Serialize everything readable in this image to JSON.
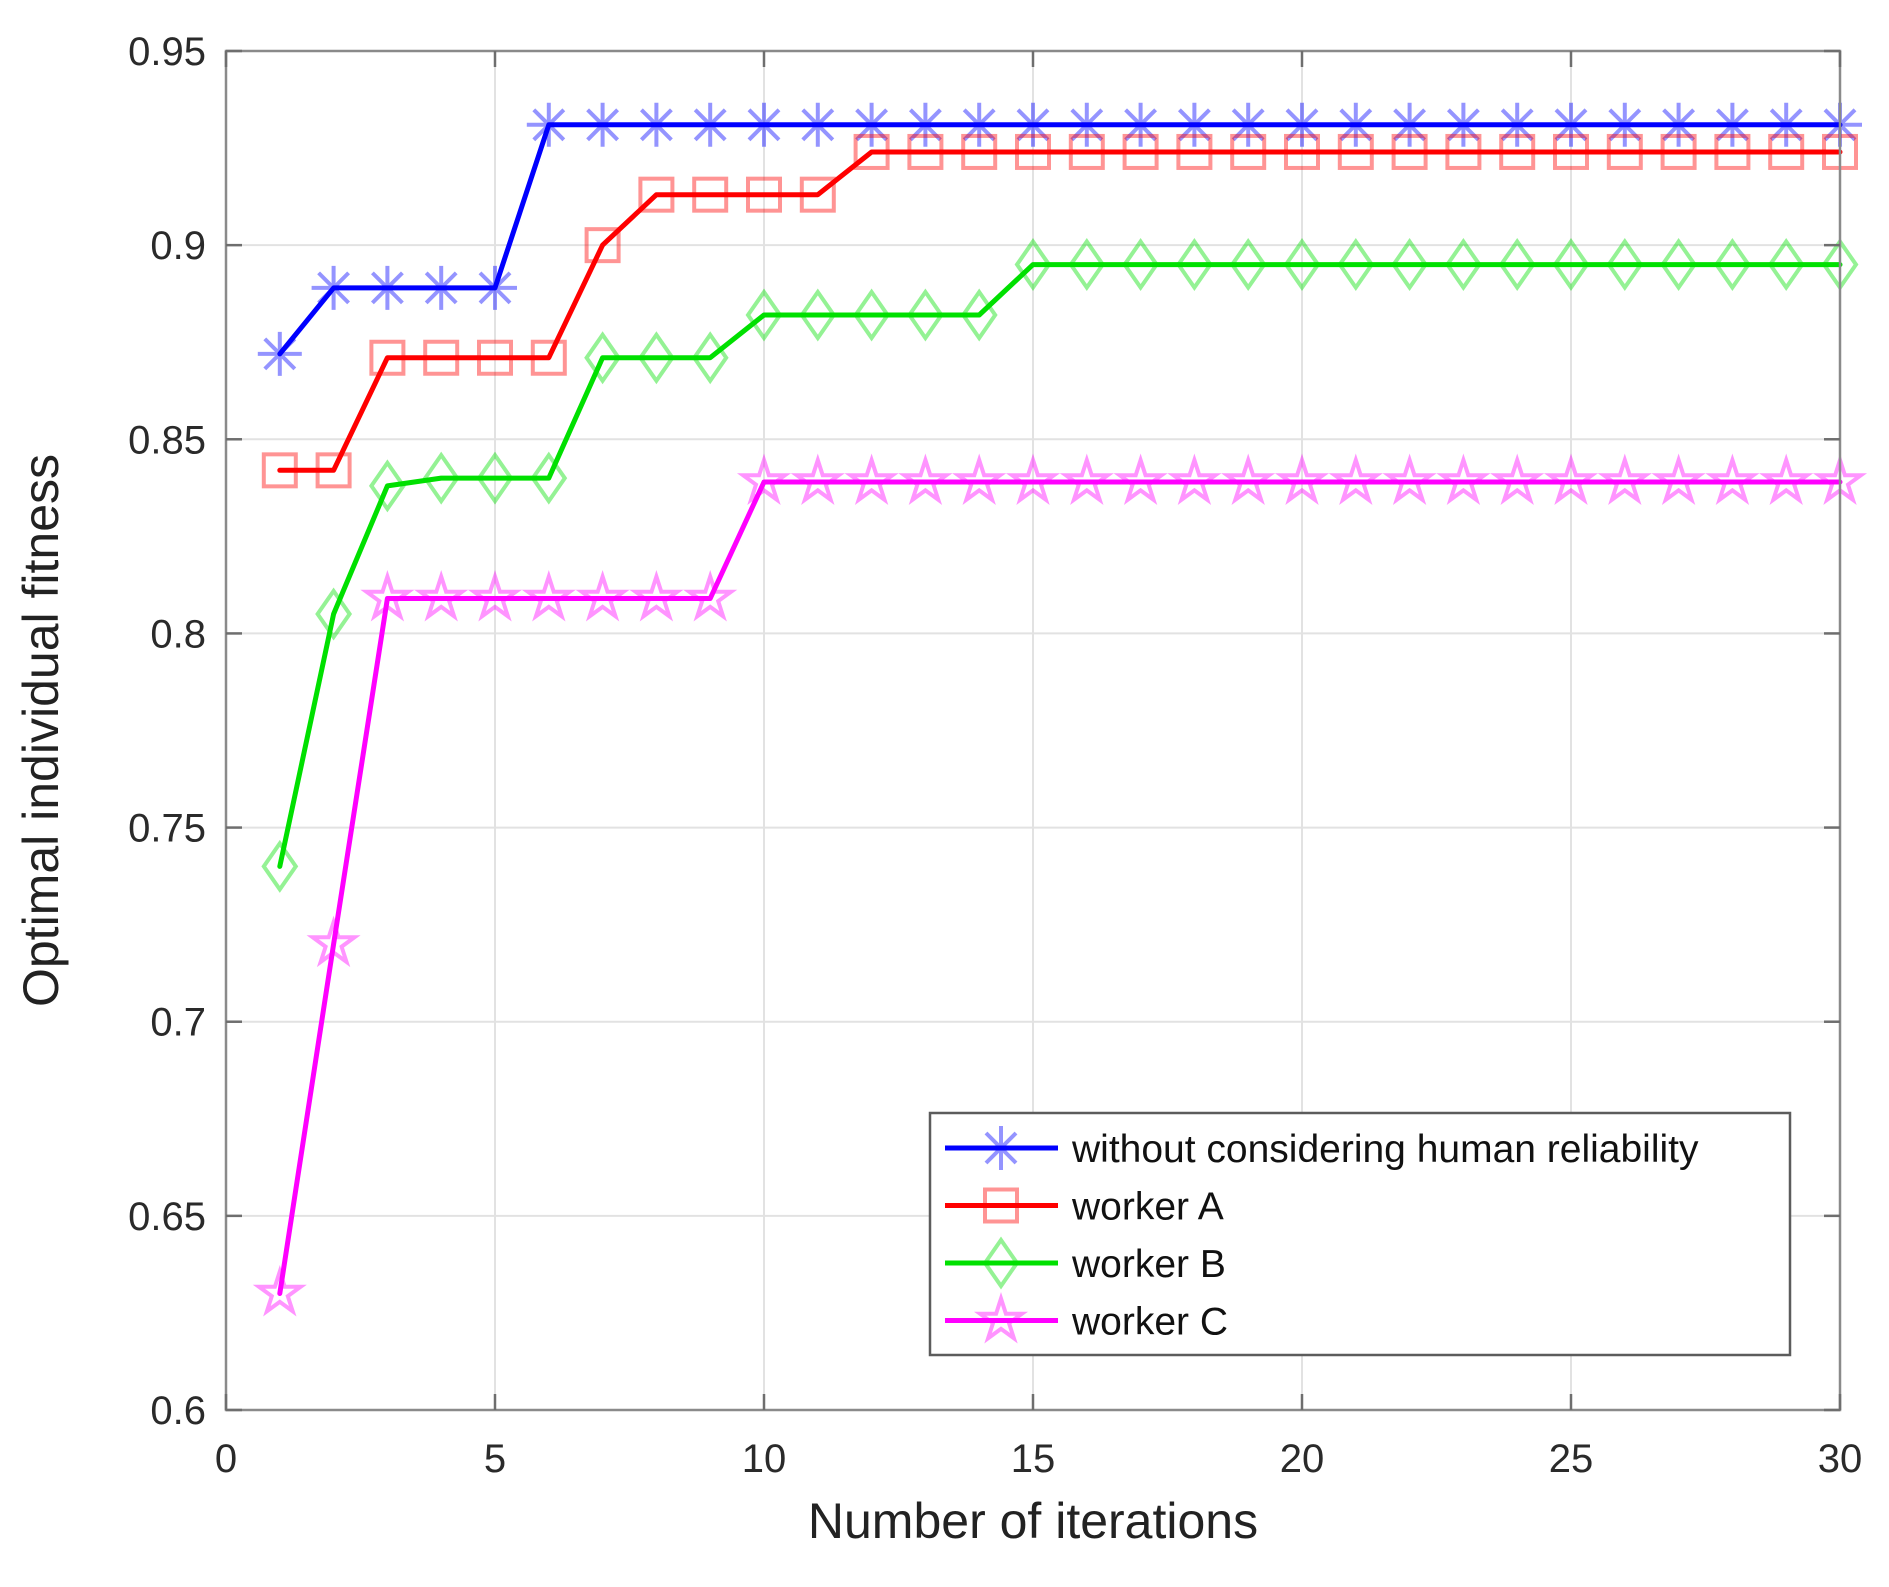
{
  "figure": {
    "background": "#ffffff",
    "axes_box_color": "#8a8a8a",
    "tick_color": "#6e6e6e",
    "grid_color": "#e2e2e2",
    "tick_label_color": "#2a2a2a",
    "axis_label_color": "#222222",
    "legend_border_color": "#5c5c5c",
    "legend_background": "#ffffff",
    "legend_text_color": "#111111"
  },
  "chart_data": {
    "type": "line",
    "title": "",
    "xlabel": "Number of iterations",
    "ylabel": "Optimal individual fitness",
    "xlim": [
      0,
      30
    ],
    "ylim": [
      0.6,
      0.95
    ],
    "xticks": [
      0,
      5,
      10,
      15,
      20,
      25,
      30
    ],
    "xtick_labels": [
      "0",
      "5",
      "10",
      "15",
      "20",
      "25",
      "30"
    ],
    "yticks": [
      0.6,
      0.65,
      0.7,
      0.75,
      0.8,
      0.85,
      0.9,
      0.95
    ],
    "ytick_labels": [
      "0.6",
      "0.65",
      "0.7",
      "0.75",
      "0.8",
      "0.85",
      "0.9",
      "0.95"
    ],
    "grid": true,
    "legend_position": "lower-right",
    "x": [
      1,
      2,
      3,
      4,
      5,
      6,
      7,
      8,
      9,
      10,
      11,
      12,
      13,
      14,
      15,
      16,
      17,
      18,
      19,
      20,
      21,
      22,
      23,
      24,
      25,
      26,
      27,
      28,
      29,
      30
    ],
    "series": [
      {
        "name": "without considering human reliability",
        "color": "#0000ff",
        "marker": "asterisk",
        "values": [
          0.872,
          0.889,
          0.889,
          0.889,
          0.889,
          0.931,
          0.931,
          0.931,
          0.931,
          0.931,
          0.931,
          0.931,
          0.931,
          0.931,
          0.931,
          0.931,
          0.931,
          0.931,
          0.931,
          0.931,
          0.931,
          0.931,
          0.931,
          0.931,
          0.931,
          0.931,
          0.931,
          0.931,
          0.931,
          0.931
        ]
      },
      {
        "name": "worker A",
        "color": "#ff0000",
        "marker": "square",
        "values": [
          0.842,
          0.842,
          0.871,
          0.871,
          0.871,
          0.871,
          0.9,
          0.913,
          0.913,
          0.913,
          0.913,
          0.924,
          0.924,
          0.924,
          0.924,
          0.924,
          0.924,
          0.924,
          0.924,
          0.924,
          0.924,
          0.924,
          0.924,
          0.924,
          0.924,
          0.924,
          0.924,
          0.924,
          0.924,
          0.924
        ]
      },
      {
        "name": "worker B",
        "color": "#00e000",
        "marker": "diamond",
        "values": [
          0.74,
          0.805,
          0.838,
          0.84,
          0.84,
          0.84,
          0.871,
          0.871,
          0.871,
          0.882,
          0.882,
          0.882,
          0.882,
          0.882,
          0.895,
          0.895,
          0.895,
          0.895,
          0.895,
          0.895,
          0.895,
          0.895,
          0.895,
          0.895,
          0.895,
          0.895,
          0.895,
          0.895,
          0.895,
          0.895
        ]
      },
      {
        "name": "worker C",
        "color": "#ff00ff",
        "marker": "pentagram",
        "values": [
          0.63,
          0.72,
          0.809,
          0.809,
          0.809,
          0.809,
          0.809,
          0.809,
          0.809,
          0.839,
          0.839,
          0.839,
          0.839,
          0.839,
          0.839,
          0.839,
          0.839,
          0.839,
          0.839,
          0.839,
          0.839,
          0.839,
          0.839,
          0.839,
          0.839,
          0.839,
          0.839,
          0.839,
          0.839,
          0.839
        ]
      }
    ]
  }
}
